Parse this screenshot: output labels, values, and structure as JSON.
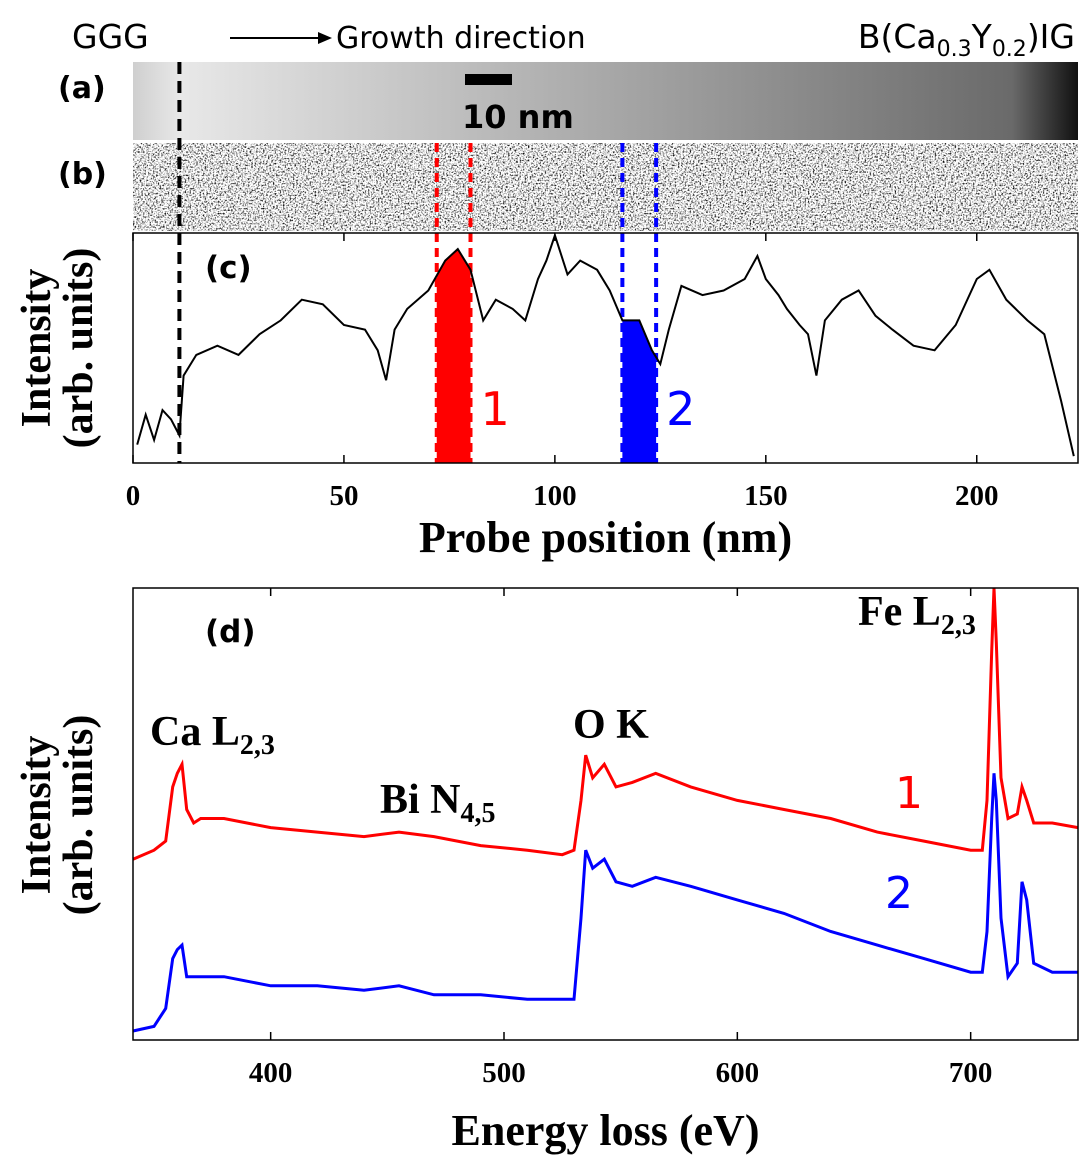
{
  "header": {
    "left": "GGG",
    "arrow_label": "Growth direction",
    "right": [
      "B(Ca",
      "0.3",
      "Y",
      "0.2",
      ")IG"
    ]
  },
  "panels": {
    "a": {
      "label": "(a)",
      "scale_bar": "10 nm"
    },
    "b": {
      "label": "(b)"
    }
  },
  "chart_data": [
    {
      "type": "line",
      "label": "(c)",
      "xlabel": "Probe position (nm)",
      "ylabel": [
        "Intensity",
        "(arb. units)"
      ],
      "xlim": [
        0,
        224
      ],
      "ylim": [
        0,
        1
      ],
      "xticks": [
        0,
        50,
        100,
        150,
        200
      ],
      "color": "#000000",
      "interface_x": 11,
      "x": [
        1,
        3,
        5,
        7,
        9,
        11,
        12,
        15,
        20,
        25,
        30,
        35,
        40,
        45,
        50,
        55,
        58,
        60,
        62,
        65,
        70,
        74,
        77,
        80,
        83,
        86,
        90,
        93,
        96,
        98,
        100,
        103,
        106,
        110,
        113,
        116,
        120,
        123,
        125,
        127,
        130,
        135,
        140,
        145,
        148,
        150,
        153,
        155,
        158,
        160,
        162,
        164,
        168,
        172,
        176,
        180,
        185,
        190,
        195,
        200,
        203,
        207,
        212,
        216,
        220,
        223
      ],
      "values": [
        0.08,
        0.21,
        0.1,
        0.23,
        0.19,
        0.12,
        0.38,
        0.47,
        0.51,
        0.47,
        0.56,
        0.62,
        0.71,
        0.69,
        0.6,
        0.58,
        0.49,
        0.36,
        0.58,
        0.67,
        0.75,
        0.88,
        0.93,
        0.84,
        0.62,
        0.71,
        0.67,
        0.62,
        0.8,
        0.88,
        0.99,
        0.82,
        0.88,
        0.84,
        0.75,
        0.62,
        0.62,
        0.49,
        0.43,
        0.58,
        0.77,
        0.73,
        0.75,
        0.8,
        0.9,
        0.8,
        0.73,
        0.67,
        0.6,
        0.56,
        0.38,
        0.62,
        0.71,
        0.75,
        0.64,
        0.58,
        0.51,
        0.49,
        0.6,
        0.8,
        0.84,
        0.71,
        0.62,
        0.56,
        0.27,
        0.03
      ],
      "regions": [
        {
          "name": "1",
          "range": [
            72,
            80
          ],
          "color": "#ff0000"
        },
        {
          "name": "2",
          "range": [
            116,
            124
          ],
          "color": "#0000ff"
        }
      ]
    },
    {
      "type": "line",
      "label": "(d)",
      "xlabel": "Energy loss (eV)",
      "ylabel": [
        "Intensity",
        "(arb. units)"
      ],
      "xlim": [
        341,
        746
      ],
      "ylim": [
        0,
        1
      ],
      "xticks": [
        400,
        500,
        600,
        700
      ],
      "x": [
        341,
        350,
        355,
        358,
        360,
        362,
        364,
        367,
        370,
        380,
        400,
        420,
        440,
        455,
        470,
        490,
        510,
        525,
        530,
        533,
        535,
        538,
        543,
        548,
        555,
        565,
        580,
        600,
        620,
        640,
        660,
        680,
        700,
        705,
        707,
        709,
        710,
        711,
        713,
        716,
        720,
        722,
        724,
        727,
        735,
        746
      ],
      "series": [
        {
          "name": "1",
          "color": "#ff0000",
          "values": [
            0.4,
            0.42,
            0.44,
            0.56,
            0.59,
            0.61,
            0.51,
            0.48,
            0.49,
            0.49,
            0.47,
            0.46,
            0.45,
            0.46,
            0.45,
            0.43,
            0.42,
            0.41,
            0.42,
            0.53,
            0.63,
            0.58,
            0.61,
            0.56,
            0.57,
            0.59,
            0.56,
            0.53,
            0.51,
            0.49,
            0.46,
            0.44,
            0.42,
            0.42,
            0.53,
            0.86,
            1.0,
            0.88,
            0.58,
            0.49,
            0.5,
            0.56,
            0.53,
            0.48,
            0.48,
            0.47
          ]
        },
        {
          "name": "2",
          "color": "#0000ff",
          "values": [
            0.02,
            0.03,
            0.07,
            0.18,
            0.2,
            0.21,
            0.14,
            0.14,
            0.14,
            0.14,
            0.12,
            0.12,
            0.11,
            0.12,
            0.1,
            0.1,
            0.09,
            0.09,
            0.09,
            0.27,
            0.42,
            0.38,
            0.4,
            0.35,
            0.34,
            0.36,
            0.34,
            0.31,
            0.28,
            0.24,
            0.21,
            0.18,
            0.15,
            0.15,
            0.24,
            0.49,
            0.59,
            0.53,
            0.27,
            0.14,
            0.17,
            0.35,
            0.31,
            0.17,
            0.15,
            0.15
          ]
        }
      ],
      "annotations": [
        {
          "text": "Ca L",
          "sub": "2,3"
        },
        {
          "text": "Bi N",
          "sub": "4,5"
        },
        {
          "text": "O K"
        },
        {
          "text": "Fe L",
          "sub": "2,3"
        }
      ]
    }
  ]
}
